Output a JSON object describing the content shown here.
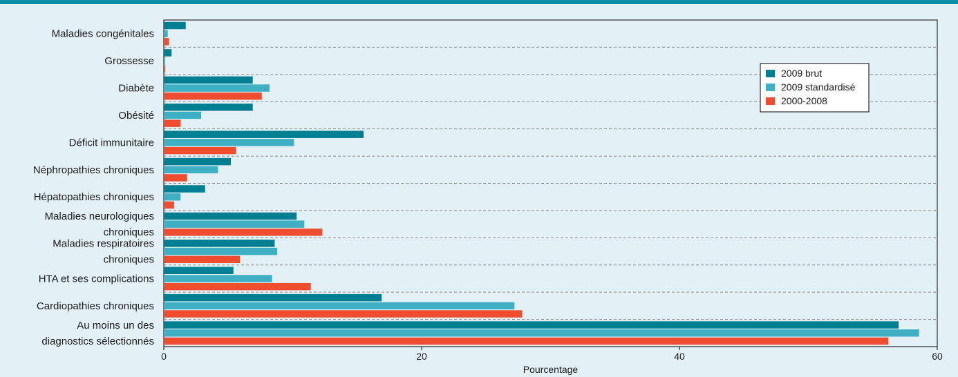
{
  "chart_data": {
    "type": "bar",
    "orientation": "horizontal",
    "xlabel": "Pourcentage",
    "ylabel": "",
    "xlim": [
      0,
      60
    ],
    "xticks": [
      0,
      20,
      40,
      60
    ],
    "grid": "dashed horizontal separators",
    "legend_position": "top-right",
    "categories": [
      [
        "Maladies congénitales"
      ],
      [
        "Grossesse"
      ],
      [
        "Diabète"
      ],
      [
        "Obésité"
      ],
      [
        "Déficit immunitaire"
      ],
      [
        "Néphropathies chroniques"
      ],
      [
        "Hépatopathies chroniques"
      ],
      [
        "Maladies neurologiques",
        "chroniques"
      ],
      [
        "Maladies respiratoires",
        "chroniques"
      ],
      [
        "HTA et ses complications"
      ],
      [
        "Cardiopathies chroniques"
      ],
      [
        "Au moins un des",
        "diagnostics sélectionnés"
      ]
    ],
    "series": [
      {
        "name": "2009 brut",
        "color": "#007f93",
        "values": [
          1.7,
          0.6,
          6.9,
          6.9,
          15.5,
          5.2,
          3.2,
          10.3,
          8.6,
          5.4,
          16.9,
          57.0
        ]
      },
      {
        "name": "2009 standardisé",
        "color": "#3fb0c3",
        "values": [
          0.3,
          0.1,
          8.2,
          2.9,
          10.1,
          4.2,
          1.3,
          10.9,
          8.8,
          8.4,
          27.2,
          58.6
        ]
      },
      {
        "name": "2000-2008",
        "color": "#ef4d2f",
        "values": [
          0.4,
          0.1,
          7.6,
          1.3,
          5.6,
          1.8,
          0.8,
          12.3,
          5.9,
          11.4,
          27.8,
          56.2
        ]
      }
    ]
  }
}
